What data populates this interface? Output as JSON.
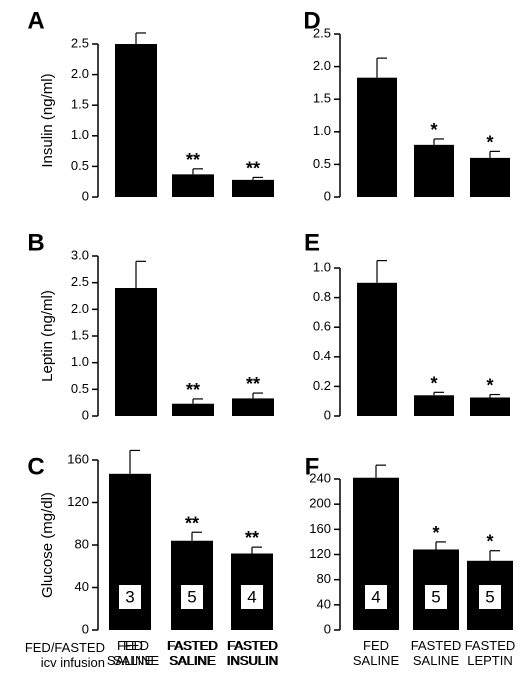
{
  "figure": {
    "row_labels": {
      "fed_fasted": "FED/FASTED",
      "icv_infusion": "icv infusion"
    }
  },
  "chart_data": [
    {
      "panel": "A",
      "type": "bar",
      "categories": [
        [
          "FED",
          "SALINE"
        ],
        [
          "FASTED",
          "SALINE"
        ],
        [
          "FASTED",
          "INSULIN"
        ]
      ],
      "values": [
        2.5,
        0.37,
        0.28
      ],
      "errors": [
        0.18,
        0.09,
        0.04
      ],
      "significance": [
        "",
        "**",
        "**"
      ],
      "ylabel": "Insulin (ng/ml)",
      "yticks": [
        "0",
        "0.5",
        "1.0",
        "1.5",
        "2.0",
        "2.5"
      ],
      "ylim": [
        0,
        2.5
      ]
    },
    {
      "panel": "B",
      "type": "bar",
      "categories": [
        [
          "FED",
          "SALINE"
        ],
        [
          "FASTED",
          "SALINE"
        ],
        [
          "FASTED",
          "INSULIN"
        ]
      ],
      "values": [
        2.4,
        0.23,
        0.33
      ],
      "errors": [
        0.5,
        0.09,
        0.1
      ],
      "significance": [
        "",
        "**",
        "**"
      ],
      "ylabel": "Leptin (ng/ml)",
      "yticks": [
        "0",
        "0.5",
        "1.0",
        "1.5",
        "2.0",
        "2.5",
        "3.0"
      ],
      "ylim": [
        0,
        3.0
      ]
    },
    {
      "panel": "C",
      "type": "bar",
      "categories": [
        [
          "FED",
          "SALINE"
        ],
        [
          "FASTED",
          "SALINE"
        ],
        [
          "FASTED",
          "INSULIN"
        ]
      ],
      "values": [
        147,
        84,
        72
      ],
      "errors": [
        22,
        8,
        6
      ],
      "significance": [
        "",
        "**",
        "**"
      ],
      "n": [
        "3",
        "5",
        "4"
      ],
      "ylabel": "Glucose (mg/dl)",
      "yticks": [
        "0",
        "40",
        "80",
        "120",
        "160"
      ],
      "ylim": [
        0,
        160
      ]
    },
    {
      "panel": "D",
      "type": "bar",
      "categories": [
        [
          "FED",
          "SALINE"
        ],
        [
          "FASTED",
          "SALINE"
        ],
        [
          "FASTED",
          "LEPTIN"
        ]
      ],
      "values": [
        1.83,
        0.8,
        0.6
      ],
      "errors": [
        0.3,
        0.09,
        0.1
      ],
      "significance": [
        "",
        "*",
        "*"
      ],
      "ylabel": "",
      "yticks": [
        "0",
        "0.5",
        "1.0",
        "1.5",
        "2.0",
        "2.5"
      ],
      "ylim": [
        0,
        2.5
      ]
    },
    {
      "panel": "E",
      "type": "bar",
      "categories": [
        [
          "FED",
          "SALINE"
        ],
        [
          "FASTED",
          "SALINE"
        ],
        [
          "FASTED",
          "LEPTIN"
        ]
      ],
      "values": [
        0.9,
        0.14,
        0.125
      ],
      "errors": [
        0.15,
        0.02,
        0.02
      ],
      "significance": [
        "",
        "*",
        "*"
      ],
      "ylabel": "",
      "yticks": [
        "0",
        "0.2",
        "0.4",
        "0.6",
        "0.8",
        "1.0"
      ],
      "ylim": [
        0,
        1.0
      ]
    },
    {
      "panel": "F",
      "type": "bar",
      "categories": [
        [
          "FED",
          "SALINE"
        ],
        [
          "FASTED",
          "SALINE"
        ],
        [
          "FASTED",
          "LEPTIN"
        ]
      ],
      "values": [
        242,
        128,
        110
      ],
      "errors": [
        20,
        12,
        16
      ],
      "significance": [
        "",
        "*",
        "*"
      ],
      "n": [
        "4",
        "5",
        "5"
      ],
      "ylabel": "",
      "yticks": [
        "0",
        "40",
        "80",
        "120",
        "160",
        "200",
        "240"
      ],
      "ylim": [
        0,
        240
      ]
    }
  ]
}
